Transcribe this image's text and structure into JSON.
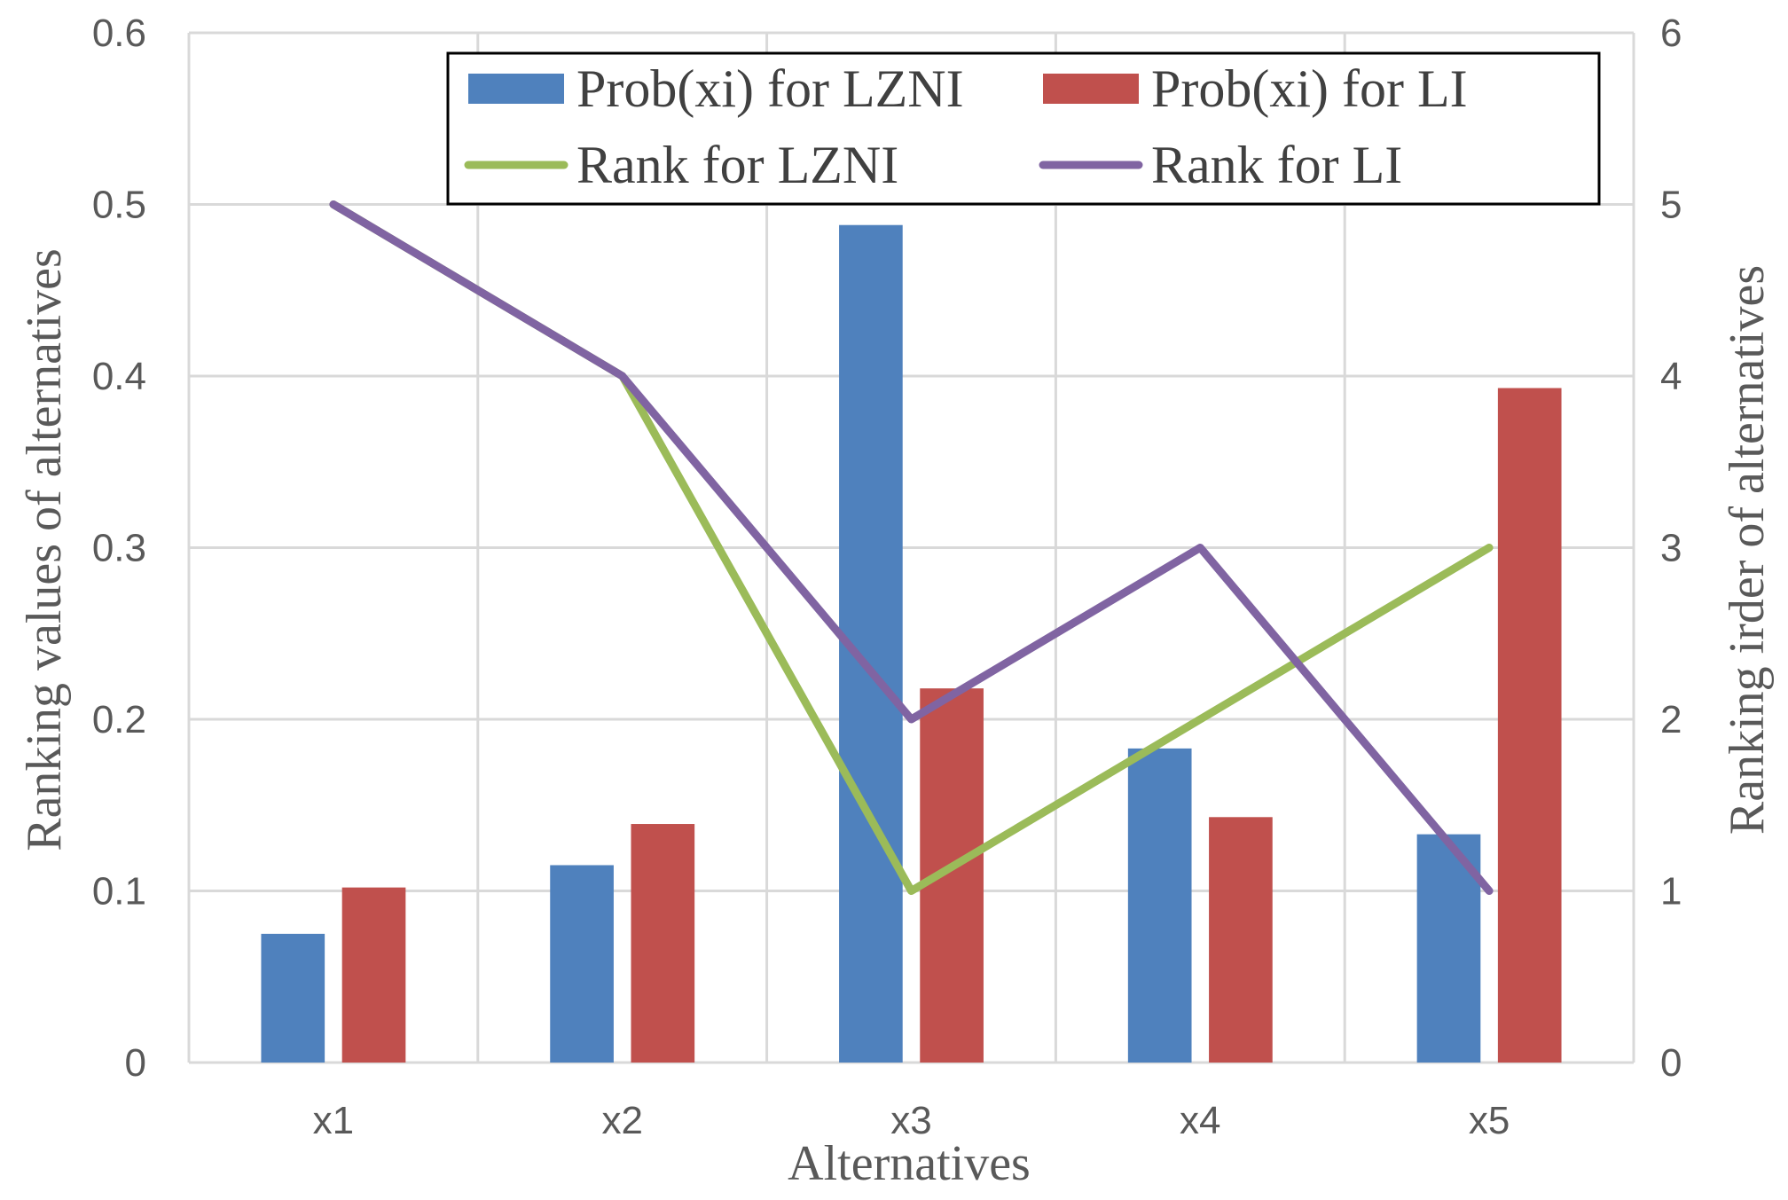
{
  "chart_data": {
    "type": "bar",
    "title": "",
    "xlabel": "Alternatives",
    "ylabel": "Ranking  values  of  alternatives",
    "y2label": "Ranking  irder  of  alternatives",
    "categories": [
      "x1",
      "x2",
      "x3",
      "x4",
      "x5"
    ],
    "ylim": [
      0,
      0.6
    ],
    "y2lim": [
      0,
      6
    ],
    "yticks": [
      "0",
      "0.1",
      "0.2",
      "0.3",
      "0.4",
      "0.5",
      "0.6"
    ],
    "y2ticks": [
      "0",
      "1",
      "2",
      "3",
      "4",
      "5",
      "6"
    ],
    "grid": true,
    "legend_position": "top-right",
    "series": [
      {
        "name": "Prob(xi) for LZNI",
        "kind": "bar",
        "axis": "left",
        "color": "#4F81BD",
        "values": [
          0.075,
          0.115,
          0.488,
          0.183,
          0.133
        ]
      },
      {
        "name": "Prob(xi) for LI",
        "kind": "bar",
        "axis": "left",
        "color": "#C0504D",
        "values": [
          0.102,
          0.139,
          0.218,
          0.143,
          0.393
        ]
      },
      {
        "name": "Rank for LZNI",
        "kind": "line",
        "axis": "right",
        "color": "#9BBB59",
        "values": [
          5,
          4,
          1,
          2,
          3
        ]
      },
      {
        "name": "Rank for LI",
        "kind": "line",
        "axis": "right",
        "color": "#8064A2",
        "values": [
          5,
          4,
          2,
          3,
          1
        ]
      }
    ]
  }
}
